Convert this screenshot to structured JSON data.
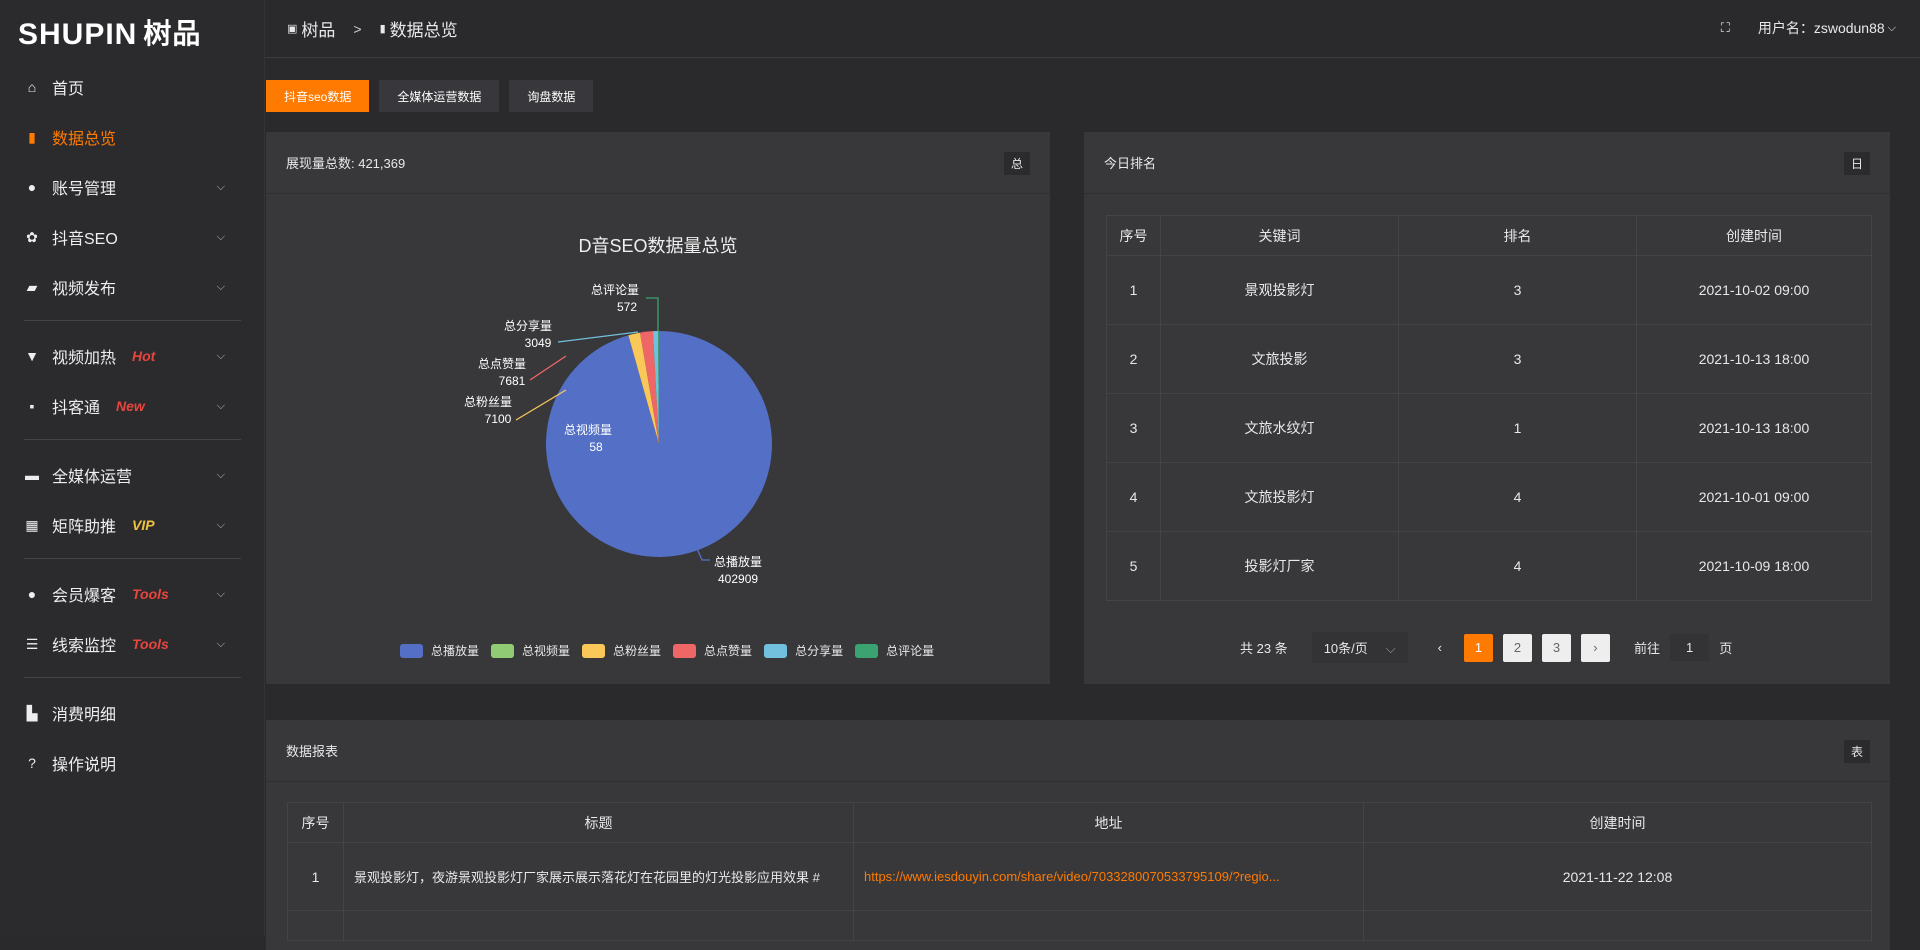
{
  "logo": {
    "text": "SHUPIN",
    "cn": "树品"
  },
  "sidebar": {
    "items": [
      {
        "label": "首页",
        "icon": "home-icon",
        "glyph": "⌂"
      },
      {
        "label": "数据总览",
        "icon": "bar-chart-icon",
        "glyph": "▮",
        "active": true
      },
      {
        "label": "账号管理",
        "icon": "user-icon",
        "glyph": "●",
        "chev": true
      },
      {
        "label": "抖音SEO",
        "icon": "gear-icon",
        "glyph": "✿",
        "chev": true
      },
      {
        "label": "视频发布",
        "icon": "camera-icon",
        "glyph": "▰",
        "chev": true,
        "divider": true
      },
      {
        "label": "视频加热",
        "icon": "monitor-stand-icon",
        "glyph": "▼",
        "chev": true,
        "badge": "Hot",
        "badge_color": "#e8453c"
      },
      {
        "label": "抖客通",
        "icon": "chat-icon",
        "glyph": "▪",
        "chev": true,
        "badge": "New",
        "badge_color": "#e8453c",
        "divider": true
      },
      {
        "label": "全媒体运营",
        "icon": "monitor-icon",
        "glyph": "▬",
        "chev": true
      },
      {
        "label": "矩阵助推",
        "icon": "grid-icon",
        "glyph": "▦",
        "chev": true,
        "badge": "VIP",
        "badge_color": "#f0c040",
        "divider": true
      },
      {
        "label": "会员爆客",
        "icon": "user-icon",
        "glyph": "●",
        "chev": true,
        "badge": "Tools",
        "badge_color": "#e8453c"
      },
      {
        "label": "线索监控",
        "icon": "sliders-icon",
        "glyph": "☰",
        "chev": true,
        "badge": "Tools",
        "badge_color": "#e8453c",
        "divider": true
      },
      {
        "label": "消费明细",
        "icon": "wallet-icon",
        "glyph": "▙"
      },
      {
        "label": "操作说明",
        "icon": "help-icon",
        "glyph": "?"
      }
    ]
  },
  "header": {
    "breadcrumb": [
      "树品",
      "数据总览"
    ],
    "sep": ">",
    "username": "用户名：zswodun88"
  },
  "tabs": [
    {
      "label": "抖音seo数据",
      "active": true
    },
    {
      "label": "全媒体运营数据"
    },
    {
      "label": "询盘数据"
    }
  ],
  "overview": {
    "title": "展现量总数: 421,369",
    "tag": "总"
  },
  "chart_data": {
    "type": "pie",
    "title": "D音SEO数据量总览",
    "legend_position": "bottom",
    "categories": [
      "总播放量",
      "总视频量",
      "总粉丝量",
      "总点赞量",
      "总分享量",
      "总评论量"
    ],
    "values": [
      402909,
      58,
      7100,
      7681,
      3049,
      572
    ],
    "colors": [
      "#5470c6",
      "#91cc75",
      "#fac858",
      "#ee6666",
      "#73c0de",
      "#3ba272"
    ]
  },
  "ranking": {
    "title": "今日排名",
    "tag": "日",
    "columns": [
      "序号",
      "关键词",
      "排名",
      "创建时间"
    ],
    "rows": [
      [
        "1",
        "景观投影灯",
        "3",
        "2021-10-02 09:00"
      ],
      [
        "2",
        "文旅投影",
        "3",
        "2021-10-13 18:00"
      ],
      [
        "3",
        "文旅水纹灯",
        "1",
        "2021-10-13 18:00"
      ],
      [
        "4",
        "文旅投影灯",
        "4",
        "2021-10-01 09:00"
      ],
      [
        "5",
        "投影灯厂家",
        "4",
        "2021-10-09 18:00"
      ]
    ],
    "pager": {
      "total": "共 23 条",
      "size": "10条/页",
      "pages": [
        "1",
        "2",
        "3"
      ],
      "current": "1",
      "goto": "前往",
      "goto_value": "1",
      "page_unit": "页"
    }
  },
  "report": {
    "title": "数据报表",
    "tag": "表",
    "columns": [
      "序号",
      "标题",
      "地址",
      "创建时间"
    ],
    "rows": [
      [
        "1",
        "景观投影灯，夜游景观投影灯厂家展示展示落花灯在花园里的灯光投影应用效果 #",
        "https://www.iesdouyin.com/share/video/7033280070533795109/?regio...",
        "2021-11-22 12:08"
      ]
    ]
  },
  "colors": {
    "accent": "#ff7a00"
  }
}
